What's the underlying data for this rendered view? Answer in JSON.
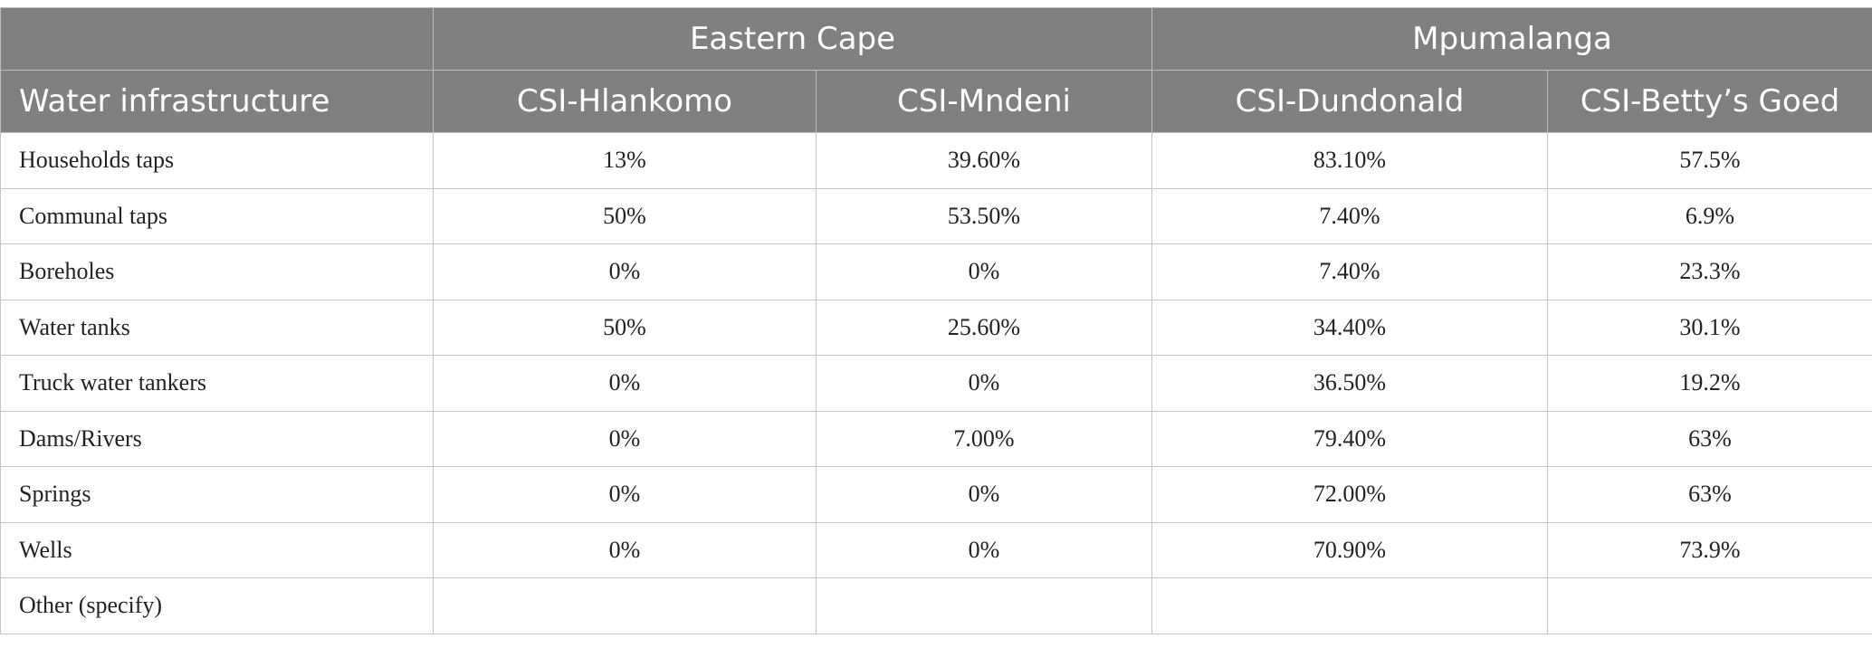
{
  "header": {
    "regions": [
      "Eastern Cape",
      "Mpumalanga"
    ],
    "first_column": "Water infrastructure",
    "sites": [
      "CSI-Hlankomo",
      "CSI-Mndeni",
      "CSI-Dundonald",
      "CSI-Betty’s Goed"
    ]
  },
  "rows": [
    {
      "label": "Households taps",
      "values": [
        "13%",
        "39.60%",
        "83.10%",
        "57.5%"
      ]
    },
    {
      "label": "Communal taps",
      "values": [
        "50%",
        "53.50%",
        "7.40%",
        "6.9%"
      ]
    },
    {
      "label": "Boreholes",
      "values": [
        "0%",
        "0%",
        "7.40%",
        "23.3%"
      ]
    },
    {
      "label": "Water tanks",
      "values": [
        "50%",
        "25.60%",
        "34.40%",
        "30.1%"
      ]
    },
    {
      "label": "Truck water tankers",
      "values": [
        "0%",
        "0%",
        "36.50%",
        "19.2%"
      ]
    },
    {
      "label": "Dams/Rivers",
      "values": [
        "0%",
        "7.00%",
        "79.40%",
        "63%"
      ]
    },
    {
      "label": "Springs",
      "values": [
        "0%",
        "0%",
        "72.00%",
        "63%"
      ]
    },
    {
      "label": "Wells",
      "values": [
        "0%",
        "0%",
        "70.90%",
        "73.9%"
      ]
    },
    {
      "label": "Other (specify)",
      "values": [
        "",
        "",
        "",
        ""
      ]
    }
  ]
}
